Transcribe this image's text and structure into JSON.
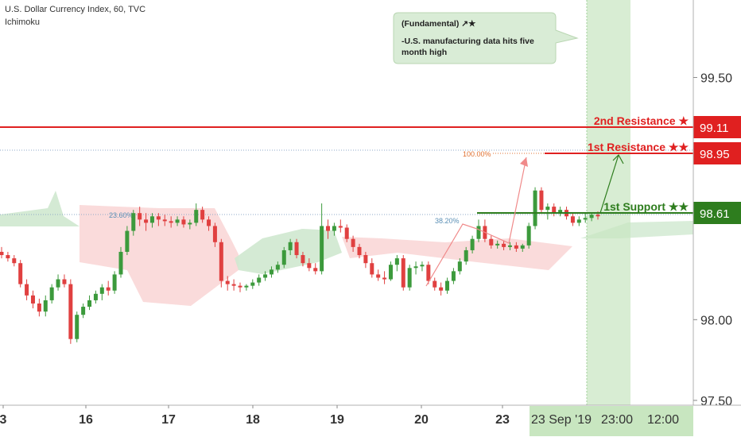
{
  "header": {
    "symbol_line": "U.S. Dollar Currency Index, 60, TVC",
    "indicator": "Ichimoku"
  },
  "note": {
    "title": "(Fundamental) ↗★",
    "line1": "-U.S. manufacturing data hits  five",
    "line2": "month high",
    "bg": "#d9ecd6"
  },
  "colors": {
    "up": "#3c9a3c",
    "down": "#e04040",
    "resistance": "#e02020",
    "support": "#2e7d1e",
    "cloud_bull": "#cfe8cf",
    "cloud_bear": "#f9d7d7",
    "highlight": "#c8e6c0",
    "fib": "#e07030"
  },
  "chart_data": {
    "type": "candlestick",
    "y_axis": {
      "ylim": [
        97.47,
        99.98
      ],
      "ticks": [
        "99.50",
        "98.00",
        "97.50"
      ]
    },
    "x_axis": {
      "ticks": [
        "3",
        "16",
        "17",
        "18",
        "19",
        "20",
        "23"
      ],
      "highlight_labels": [
        "23 Sep '19",
        "23:00",
        "12:00"
      ]
    },
    "levels": [
      {
        "name": "2nd Resistance ★",
        "value": 99.11,
        "label": "99.11"
      },
      {
        "name": "1st Resistance ★★",
        "value": 98.95,
        "label": "98.95"
      },
      {
        "name": "1st Support ★★",
        "value": 98.61,
        "label": "98.61"
      }
    ],
    "fib_labels": [
      "100.00%",
      "23.60%",
      "38.20%"
    ],
    "candles": [
      [
        98.42,
        98.45,
        98.38,
        98.4
      ],
      [
        98.4,
        98.42,
        98.36,
        98.38
      ],
      [
        98.38,
        98.4,
        98.33,
        98.35
      ],
      [
        98.35,
        98.37,
        98.2,
        98.22
      ],
      [
        98.22,
        98.25,
        98.12,
        98.15
      ],
      [
        98.15,
        98.18,
        98.07,
        98.1
      ],
      [
        98.1,
        98.13,
        98.02,
        98.05
      ],
      [
        98.05,
        98.15,
        98.02,
        98.12
      ],
      [
        98.12,
        98.22,
        98.1,
        98.2
      ],
      [
        98.2,
        98.28,
        98.18,
        98.25
      ],
      [
        98.25,
        98.28,
        98.2,
        98.22
      ],
      [
        98.22,
        98.25,
        97.85,
        97.88
      ],
      [
        97.88,
        98.05,
        97.86,
        98.03
      ],
      [
        98.03,
        98.1,
        98.01,
        98.08
      ],
      [
        98.08,
        98.15,
        98.06,
        98.12
      ],
      [
        98.12,
        98.18,
        98.1,
        98.16
      ],
      [
        98.16,
        98.22,
        98.12,
        98.2
      ],
      [
        98.2,
        98.24,
        98.15,
        98.18
      ],
      [
        98.18,
        98.3,
        98.16,
        98.28
      ],
      [
        98.28,
        98.45,
        98.26,
        98.42
      ],
      [
        98.42,
        98.58,
        98.4,
        98.55
      ],
      [
        98.55,
        98.68,
        98.52,
        98.66
      ],
      [
        98.66,
        98.7,
        98.58,
        98.62
      ],
      [
        98.62,
        98.66,
        98.55,
        98.6
      ],
      [
        98.6,
        98.66,
        98.57,
        98.64
      ],
      [
        98.64,
        98.66,
        98.58,
        98.62
      ],
      [
        98.62,
        98.65,
        98.58,
        98.61
      ],
      [
        98.61,
        98.64,
        98.57,
        98.6
      ],
      [
        98.6,
        98.64,
        98.58,
        98.62
      ],
      [
        98.62,
        98.64,
        98.57,
        98.59
      ],
      [
        98.59,
        98.62,
        98.56,
        98.6
      ],
      [
        98.6,
        98.72,
        98.58,
        98.68
      ],
      [
        98.68,
        98.7,
        98.6,
        98.62
      ],
      [
        98.62,
        98.64,
        98.55,
        98.58
      ],
      [
        98.58,
        98.6,
        98.45,
        98.48
      ],
      [
        98.48,
        98.5,
        98.2,
        98.24
      ],
      [
        98.24,
        98.27,
        98.18,
        98.22
      ],
      [
        98.22,
        98.25,
        98.18,
        98.21
      ],
      [
        98.21,
        98.23,
        98.17,
        98.2
      ],
      [
        98.2,
        98.22,
        98.18,
        98.21
      ],
      [
        98.21,
        98.25,
        98.19,
        98.23
      ],
      [
        98.23,
        98.28,
        98.21,
        98.26
      ],
      [
        98.26,
        98.3,
        98.24,
        98.28
      ],
      [
        98.28,
        98.33,
        98.26,
        98.31
      ],
      [
        98.31,
        98.36,
        98.29,
        98.34
      ],
      [
        98.34,
        98.45,
        98.32,
        98.43
      ],
      [
        98.43,
        98.5,
        98.4,
        98.48
      ],
      [
        98.48,
        98.5,
        98.38,
        98.4
      ],
      [
        98.4,
        98.42,
        98.33,
        98.35
      ],
      [
        98.35,
        98.38,
        98.3,
        98.32
      ],
      [
        98.32,
        98.35,
        98.28,
        98.3
      ],
      [
        98.3,
        98.72,
        98.28,
        98.58
      ],
      [
        98.58,
        98.62,
        98.5,
        98.55
      ],
      [
        98.55,
        98.6,
        98.52,
        98.58
      ],
      [
        98.58,
        98.62,
        98.54,
        98.57
      ],
      [
        98.57,
        98.59,
        98.48,
        98.5
      ],
      [
        98.5,
        98.52,
        98.42,
        98.45
      ],
      [
        98.45,
        98.47,
        98.38,
        98.4
      ],
      [
        98.4,
        98.42,
        98.32,
        98.35
      ],
      [
        98.35,
        98.38,
        98.26,
        98.28
      ],
      [
        98.28,
        98.31,
        98.24,
        98.26
      ],
      [
        98.26,
        98.3,
        98.22,
        98.25
      ],
      [
        98.25,
        98.36,
        98.24,
        98.34
      ],
      [
        98.34,
        98.4,
        98.3,
        98.38
      ],
      [
        98.38,
        98.4,
        98.18,
        98.2
      ],
      [
        98.2,
        98.34,
        98.18,
        98.32
      ],
      [
        98.32,
        98.36,
        98.28,
        98.33
      ],
      [
        98.33,
        98.36,
        98.3,
        98.34
      ],
      [
        98.34,
        98.36,
        98.22,
        98.24
      ],
      [
        98.24,
        98.26,
        98.18,
        98.2
      ],
      [
        98.2,
        98.23,
        98.15,
        98.18
      ],
      [
        98.18,
        98.26,
        98.16,
        98.24
      ],
      [
        98.24,
        98.32,
        98.22,
        98.3
      ],
      [
        98.3,
        98.38,
        98.28,
        98.36
      ],
      [
        98.36,
        98.45,
        98.34,
        98.43
      ],
      [
        98.43,
        98.52,
        98.41,
        98.5
      ],
      [
        98.5,
        98.62,
        98.48,
        98.58
      ],
      [
        98.58,
        98.62,
        98.48,
        98.5
      ],
      [
        98.5,
        98.52,
        98.44,
        98.46
      ],
      [
        98.46,
        98.49,
        98.44,
        98.47
      ],
      [
        98.47,
        98.49,
        98.43,
        98.45
      ],
      [
        98.45,
        98.48,
        98.43,
        98.46
      ],
      [
        98.46,
        98.48,
        98.42,
        98.44
      ],
      [
        98.44,
        98.47,
        98.42,
        98.46
      ],
      [
        98.46,
        98.6,
        98.44,
        98.58
      ],
      [
        98.58,
        98.82,
        98.56,
        98.8
      ],
      [
        98.8,
        98.82,
        98.66,
        98.68
      ],
      [
        98.68,
        98.72,
        98.62,
        98.7
      ],
      [
        98.7,
        98.72,
        98.64,
        98.66
      ],
      [
        98.66,
        98.7,
        98.64,
        98.68
      ],
      [
        98.68,
        98.7,
        98.62,
        98.64
      ],
      [
        98.64,
        98.66,
        98.58,
        98.6
      ],
      [
        98.6,
        98.64,
        98.58,
        98.62
      ],
      [
        98.62,
        98.66,
        98.6,
        98.63
      ],
      [
        98.63,
        98.66,
        98.61,
        98.65
      ],
      [
        98.65,
        98.67,
        98.62,
        98.64
      ]
    ]
  }
}
